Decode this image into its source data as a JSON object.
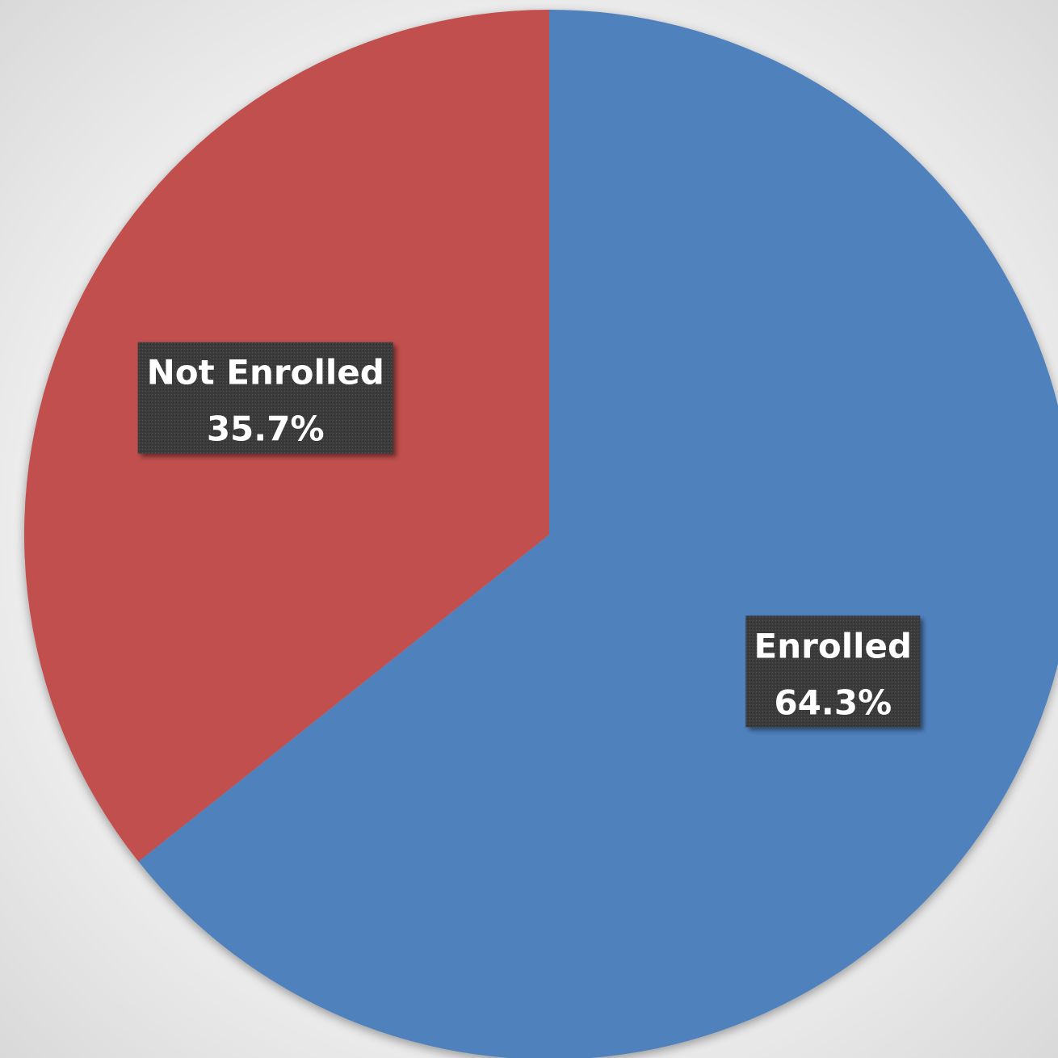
{
  "chart_data": {
    "type": "pie",
    "start_angle_deg": 0,
    "direction": "clockwise",
    "slices": [
      {
        "name": "Enrolled",
        "value": 64.3,
        "label": "64.3%",
        "color": "#4f81bd"
      },
      {
        "name": "Not Enrolled",
        "value": 35.7,
        "label": "35.7%",
        "color": "#c0504d"
      }
    ],
    "legend": "none",
    "data_labels": "category and percentage in dark boxes"
  }
}
